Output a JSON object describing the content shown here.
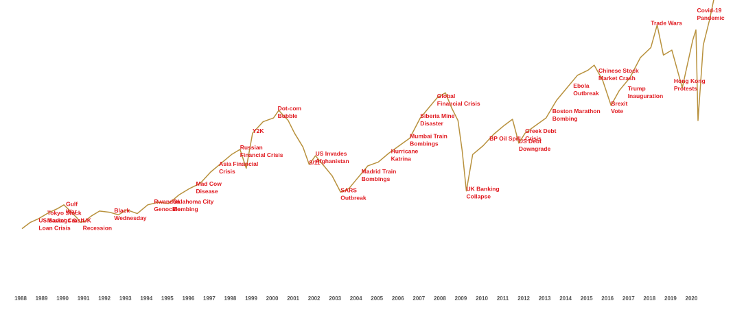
{
  "chart_data": {
    "type": "line",
    "title": "",
    "xlabel": "",
    "ylabel": "",
    "grid": false,
    "x_ticks": [
      1988,
      1989,
      1990,
      1991,
      1992,
      1993,
      1994,
      1995,
      1996,
      1997,
      1998,
      1999,
      2000,
      2001,
      2002,
      2003,
      2004,
      2005,
      2006,
      2007,
      2008,
      2009,
      2010,
      2011,
      2012,
      2013,
      2014,
      2015,
      2016,
      2017,
      2018,
      2019,
      2020
    ],
    "xlim": [
      1988,
      2021.1
    ],
    "ylim": [
      0,
      100
    ],
    "colors": {
      "line": "#b8913d",
      "annotation": "#e0191f",
      "tick": "#555555"
    },
    "series": [
      {
        "x": [
          1988.0,
          1988.4,
          1988.8,
          1989.3,
          1989.7,
          1990.0,
          1990.3,
          1990.6,
          1990.8,
          1991.0,
          1991.3,
          1991.7,
          1992.2,
          1992.6,
          1993.0,
          1993.5,
          1994.0,
          1994.5,
          1995.0,
          1995.5,
          1996.0,
          1996.5,
          1997.0,
          1997.5,
          1998.0,
          1998.4,
          1998.7,
          1999.0,
          1999.5,
          2000.0,
          2000.25,
          2000.7,
          2001.0,
          2001.4,
          2001.7,
          2002.0,
          2002.5,
          2002.8,
          2003.2,
          2003.6,
          2004.0,
          2004.5,
          2005.0,
          2005.5,
          2006.0,
          2006.5,
          2007.0,
          2007.4,
          2007.8,
          2008.2,
          2008.5,
          2008.8,
          2009.0,
          2009.2,
          2009.5,
          2010.0,
          2010.5,
          2011.0,
          2011.4,
          2011.7,
          2012.0,
          2012.5,
          2013.0,
          2013.5,
          2014.0,
          2014.5,
          2015.0,
          2015.3,
          2015.7,
          2016.1,
          2016.5,
          2017.0,
          2017.5,
          2018.0,
          2018.3,
          2018.6,
          2019.0,
          2019.5,
          2020.0,
          2020.15,
          2020.25,
          2020.5,
          2020.8,
          2021.05
        ],
        "y": [
          14.0,
          16.5,
          18.0,
          20.5,
          22.0,
          23.5,
          21.0,
          18.5,
          16.5,
          17.0,
          19.0,
          21.0,
          20.5,
          19.5,
          21.5,
          20.0,
          23.5,
          24.5,
          24.0,
          27.5,
          30.0,
          32.0,
          36.5,
          40.0,
          43.5,
          45.5,
          38.0,
          52.0,
          56.5,
          58.0,
          61.0,
          57.0,
          52.0,
          46.5,
          39.5,
          43.0,
          38.0,
          35.0,
          28.5,
          30.0,
          34.0,
          39.0,
          40.5,
          44.0,
          47.0,
          50.0,
          58.0,
          62.0,
          66.0,
          68.0,
          62.0,
          57.0,
          45.0,
          29.0,
          43.5,
          47.0,
          51.5,
          55.0,
          57.5,
          48.0,
          52.0,
          55.0,
          58.0,
          65.0,
          70.0,
          75.0,
          77.0,
          79.0,
          73.0,
          63.0,
          69.0,
          74.0,
          82.0,
          86.0,
          95.0,
          83.0,
          85.0,
          70.0,
          89.0,
          93.0,
          57.0,
          87.0,
          97.0,
          107.0
        ]
      }
    ],
    "annotations": [
      {
        "lines": [
          "US Savings &",
          "Loan Crisis"
        ],
        "x": 1988.8,
        "y": 16.5
      },
      {
        "lines": [
          "Tokyo Stock",
          "Market Crash"
        ],
        "x": 1989.2,
        "y": 19.5
      },
      {
        "lines": [
          "Gulf",
          "War"
        ],
        "x": 1990.1,
        "y": 23.0
      },
      {
        "lines": [
          "UK",
          "Recession"
        ],
        "x": 1990.9,
        "y": 16.5
      },
      {
        "lines": [
          "Black",
          "Wednesday"
        ],
        "x": 1992.4,
        "y": 20.5
      },
      {
        "lines": [
          "Rwandan",
          "Genocide"
        ],
        "x": 1994.3,
        "y": 24.0
      },
      {
        "lines": [
          "Oklahoma City",
          "Bombing"
        ],
        "x": 1995.2,
        "y": 24.0
      },
      {
        "lines": [
          "Mad Cow",
          "Disease"
        ],
        "x": 1996.3,
        "y": 31.0
      },
      {
        "lines": [
          "Asia Financial",
          "Crisis"
        ],
        "x": 1997.4,
        "y": 39.0
      },
      {
        "lines": [
          "Russian",
          "Financial Crisis"
        ],
        "x": 1998.4,
        "y": 45.5
      },
      {
        "lines": [
          "Y2K"
        ],
        "x": 1999.0,
        "y": 52.0
      },
      {
        "lines": [
          "Dot-com",
          "Bubble"
        ],
        "x": 2000.2,
        "y": 61.0
      },
      {
        "lines": [
          "9/11"
        ],
        "x": 2001.7,
        "y": 39.5
      },
      {
        "lines": [
          "US Invades",
          "Afghanistan"
        ],
        "x": 2002.0,
        "y": 43.0
      },
      {
        "lines": [
          "SARS",
          "Outbreak"
        ],
        "x": 2003.2,
        "y": 28.5
      },
      {
        "lines": [
          "Madrid Train",
          "Bombings"
        ],
        "x": 2004.2,
        "y": 36.0
      },
      {
        "lines": [
          "Hurricane",
          "Katrina"
        ],
        "x": 2005.6,
        "y": 44.0
      },
      {
        "lines": [
          "Mumbai Train",
          "Bombings"
        ],
        "x": 2006.5,
        "y": 50.0
      },
      {
        "lines": [
          "Siberia Mine",
          "Disaster"
        ],
        "x": 2007.0,
        "y": 58.0
      },
      {
        "lines": [
          "Global",
          "Financial Crisis"
        ],
        "x": 2007.8,
        "y": 66.0
      },
      {
        "lines": [
          "UK Banking",
          "Collapse"
        ],
        "x": 2009.2,
        "y": 29.0
      },
      {
        "lines": [
          "BP Oil Spill"
        ],
        "x": 2010.3,
        "y": 49.0
      },
      {
        "lines": [
          "US Debt",
          "Downgrade"
        ],
        "x": 2011.7,
        "y": 48.0
      },
      {
        "lines": [
          "Greek Debt",
          "Crisis"
        ],
        "x": 2012.0,
        "y": 52.0
      },
      {
        "lines": [
          "Boston Marathon",
          "Bombing"
        ],
        "x": 2013.3,
        "y": 60.0
      },
      {
        "lines": [
          "Ebola",
          "Outbreak"
        ],
        "x": 2014.3,
        "y": 70.0
      },
      {
        "lines": [
          "Chinese Stock",
          "Market Crash"
        ],
        "x": 2015.5,
        "y": 76.0
      },
      {
        "lines": [
          "Brexit",
          "Vote"
        ],
        "x": 2016.1,
        "y": 63.0
      },
      {
        "lines": [
          "Trump",
          "Inauguration"
        ],
        "x": 2016.9,
        "y": 69.0
      },
      {
        "lines": [
          "Trade Wars"
        ],
        "x": 2018.0,
        "y": 95.0
      },
      {
        "lines": [
          "Hong Kong",
          "Protests"
        ],
        "x": 2019.1,
        "y": 72.0
      },
      {
        "lines": [
          "Covid-19",
          "Pandemic"
        ],
        "x": 2020.2,
        "y": 100.0
      }
    ]
  }
}
